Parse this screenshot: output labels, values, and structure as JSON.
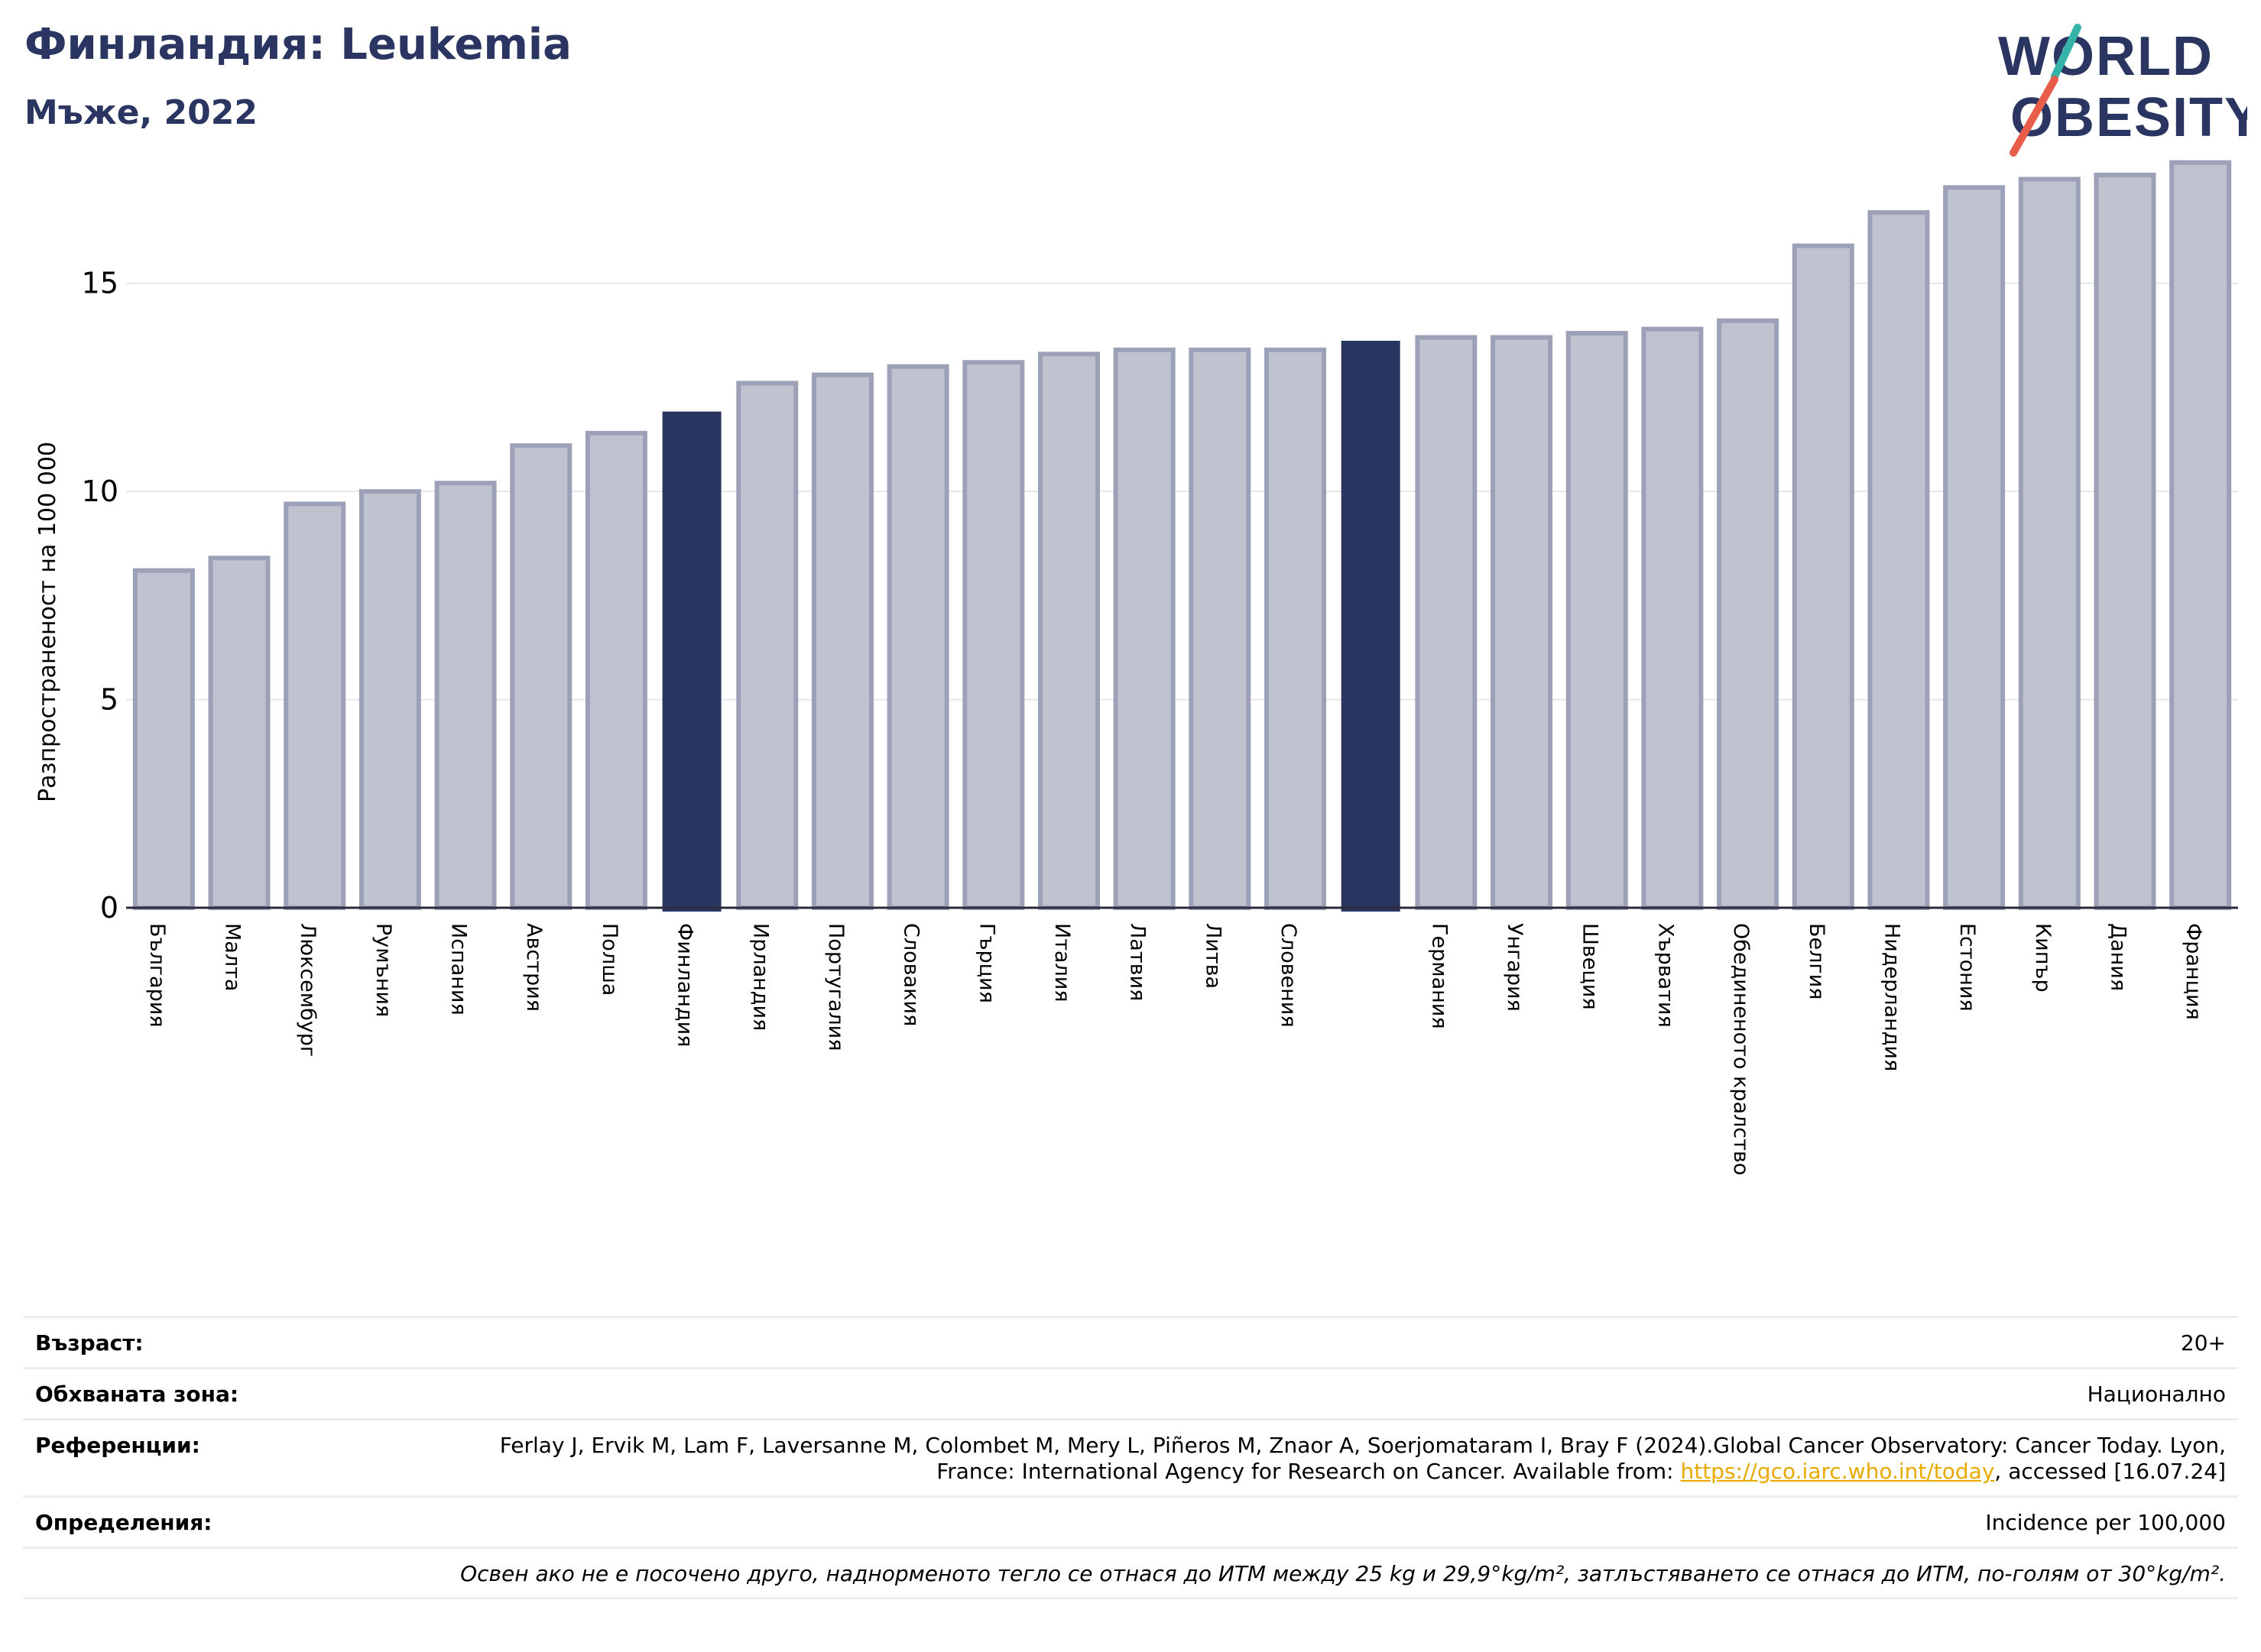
{
  "header": {
    "title": "Финландия: Leukemia",
    "subtitle": "Мъже, 2022"
  },
  "logo": {
    "line1": "WORLD",
    "line2": "OBESITY",
    "accent_colors": [
      "#36b3a8",
      "#e85c4a"
    ],
    "text_color": "#2a3561"
  },
  "colors": {
    "bar_default": "#bfc2cf",
    "bar_default_stroke": "#9da1b8",
    "bar_highlight": "#2a3561",
    "grid": "#e6e7ec",
    "axis": "#2a2a3a"
  },
  "chart_data": {
    "type": "bar",
    "ylabel": "Разпространеност  на 100 000",
    "ylim": [
      0,
      18.5
    ],
    "yticks": [
      0,
      5,
      10,
      15
    ],
    "grid": true,
    "categories": [
      "България",
      "Малта",
      "Люксембург",
      "Румъния",
      "Испания",
      "Австрия",
      "Полша",
      "Финландия",
      "Ирландия",
      "Португалия",
      "Словакия",
      "Гърция",
      "Италия",
      "Латвия",
      "Литва",
      "Словения",
      "",
      "Германия",
      "Унгария",
      "Швеция",
      "Хърватия",
      "Обединеното кралство",
      "Белгия",
      "Нидерландия",
      "Естония",
      "Кипър",
      "Дания",
      "Франция"
    ],
    "values": [
      8.1,
      8.4,
      9.7,
      10.0,
      10.2,
      11.1,
      11.4,
      11.9,
      12.6,
      12.8,
      13.0,
      13.1,
      13.3,
      13.4,
      13.4,
      13.4,
      13.6,
      13.7,
      13.7,
      13.8,
      13.9,
      14.1,
      15.9,
      16.7,
      17.3,
      17.5,
      17.6,
      17.9
    ],
    "highlight": [
      7,
      16
    ]
  },
  "info": {
    "age_label": "Възраст:",
    "age_value": "20+",
    "area_label": "Обхваната зона:",
    "area_value": "Национално",
    "refs_label": "Референции:",
    "refs_text_1": "Ferlay J, Ervik M, Lam F, Laversanne M, Colombet M, Mery L, Piñeros M, Znaor A, Soerjomataram I, Bray F (2024).Global Cancer Observatory: Cancer Today. Lyon, France: International Agency for Research on Cancer. Available from: ",
    "refs_link": "https://gco.iarc.who.int/today",
    "refs_text_2": ", accessed [16.07.24]",
    "defs_label": "Определения:",
    "defs_value": "Incidence per 100,000",
    "note": "Освен ако не е посочено друго, наднорменото тегло се отнася до ИТМ между 25 kg и 29,9°kg/m², затлъстяването се отнася до ИТМ, по-голям от 30°kg/m²."
  }
}
